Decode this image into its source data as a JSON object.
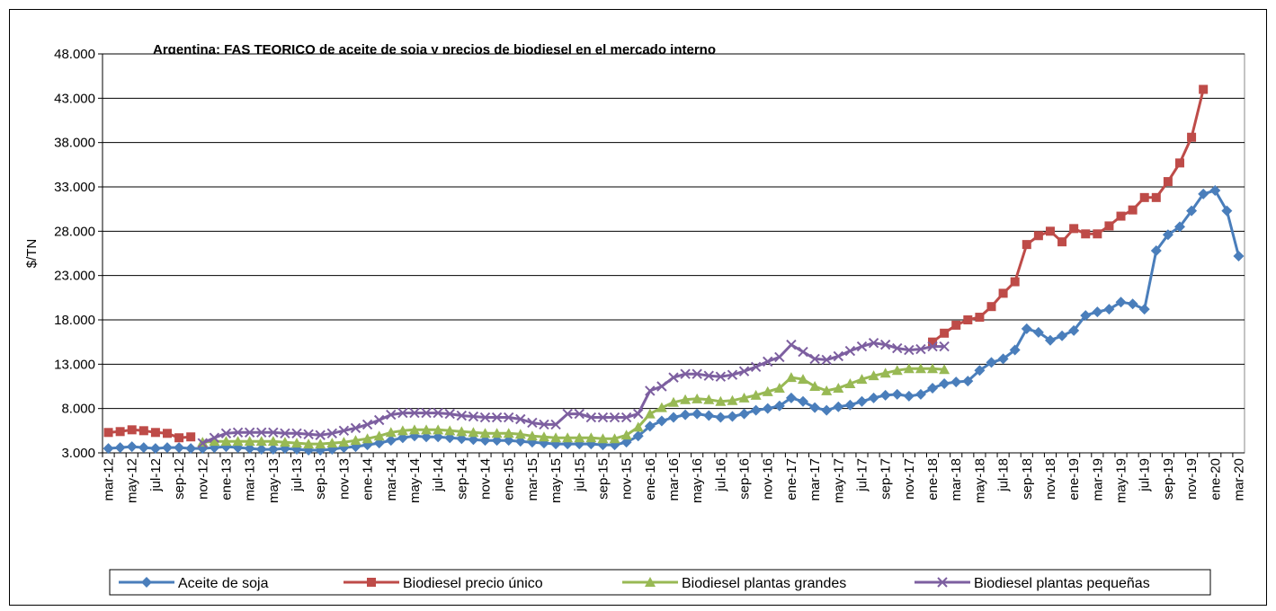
{
  "chart_data": {
    "type": "line",
    "title": "Argentina: FAS  TEORICO  de aceite de soja y precios de biodiesel  en el mercado interno",
    "y_label": "$/TN",
    "categories": [
      "mar-12",
      null,
      "may-12",
      null,
      "jul-12",
      null,
      "sep-12",
      null,
      "nov-12",
      null,
      "ene-13",
      null,
      "mar-13",
      null,
      "may-13",
      null,
      "jul-13",
      null,
      "sep-13",
      null,
      "nov-13",
      null,
      "ene-14",
      null,
      "mar-14",
      null,
      "may-14",
      null,
      "jul-14",
      null,
      "sep-14",
      null,
      "nov-14",
      null,
      "ene-15",
      null,
      "mar-15",
      null,
      "may-15",
      null,
      "jul-15",
      null,
      "sep-15",
      null,
      "nov-15",
      null,
      "ene-16",
      null,
      "mar-16",
      null,
      "may-16",
      null,
      "jul-16",
      null,
      "sep-16",
      null,
      "nov-16",
      null,
      "ene-17",
      null,
      "mar-17",
      null,
      "may-17",
      null,
      "jul-17",
      null,
      "sep-17",
      null,
      "nov-17",
      null,
      "ene-18",
      null,
      "mar-18",
      null,
      "may-18",
      null,
      "jul-18",
      null,
      "sep-18",
      null,
      "nov-18",
      null,
      "ene-19",
      null,
      "mar-19",
      null,
      "may-19",
      null,
      "jul-19",
      null,
      "sep-19",
      null,
      "nov-19",
      null,
      "ene-20",
      null,
      "mar-20"
    ],
    "series": [
      {
        "name": "Aceite de soja",
        "color": "#4a7ebb",
        "marker": "diamond",
        "values": [
          3500,
          3600,
          3700,
          3600,
          3500,
          3600,
          3600,
          3500,
          3500,
          3600,
          3700,
          3600,
          3500,
          3400,
          3400,
          3500,
          3400,
          3300,
          3300,
          3400,
          3600,
          3700,
          3900,
          4100,
          4400,
          4700,
          4900,
          4800,
          4800,
          4700,
          4600,
          4500,
          4400,
          4400,
          4400,
          4300,
          4200,
          4100,
          4000,
          4000,
          4000,
          4000,
          3900,
          3900,
          4200,
          4900,
          6000,
          6600,
          7000,
          7300,
          7400,
          7200,
          7000,
          7100,
          7400,
          7800,
          8000,
          8300,
          9200,
          8800,
          8100,
          7800,
          8200,
          8400,
          8800,
          9200,
          9500,
          9600,
          9400,
          9600,
          10300,
          10800,
          11000,
          11100,
          12300,
          13200,
          13600,
          14600,
          17000,
          16600,
          15700,
          16200,
          16800,
          18500,
          18900,
          19200,
          20000,
          19800,
          19200,
          25800,
          27600,
          28500,
          30300,
          32200,
          32600,
          30300,
          25200
        ]
      },
      {
        "name": "Biodiesel precio único",
        "color": "#be4b48",
        "marker": "square",
        "values": [
          5300,
          5400,
          5600,
          5500,
          5300,
          5200,
          4700,
          4800,
          null,
          null,
          null,
          null,
          null,
          null,
          null,
          null,
          null,
          null,
          null,
          null,
          null,
          null,
          null,
          null,
          null,
          null,
          null,
          null,
          null,
          null,
          null,
          null,
          null,
          null,
          null,
          null,
          null,
          null,
          null,
          null,
          null,
          null,
          null,
          null,
          null,
          null,
          null,
          null,
          null,
          null,
          null,
          null,
          null,
          null,
          null,
          null,
          null,
          null,
          null,
          null,
          null,
          null,
          null,
          null,
          null,
          null,
          null,
          null,
          null,
          null,
          15500,
          16500,
          17400,
          18000,
          18300,
          19500,
          21000,
          22300,
          26500,
          27500,
          28000,
          26800,
          28300,
          27700,
          27700,
          28600,
          29700,
          30400,
          31800,
          31800,
          33600,
          35700,
          38600,
          44000,
          null,
          null,
          null
        ]
      },
      {
        "name": "Biodiesel plantas grandes",
        "color": "#98b954",
        "marker": "triangle",
        "values": [
          null,
          null,
          null,
          null,
          null,
          null,
          null,
          null,
          4200,
          4300,
          4300,
          4300,
          4300,
          4300,
          4300,
          4200,
          4100,
          4000,
          4000,
          4100,
          4200,
          4400,
          4600,
          4900,
          5300,
          5500,
          5600,
          5600,
          5600,
          5500,
          5400,
          5300,
          5200,
          5200,
          5200,
          5100,
          4900,
          4800,
          4700,
          4700,
          4700,
          4700,
          4600,
          4600,
          5000,
          5900,
          7400,
          8100,
          8700,
          9000,
          9100,
          9000,
          8800,
          8900,
          9200,
          9500,
          9900,
          10300,
          11500,
          11300,
          10500,
          10000,
          10300,
          10800,
          11300,
          11700,
          12000,
          12300,
          12500,
          12500,
          12500,
          12400,
          null,
          null,
          null,
          null,
          null,
          null,
          null,
          null,
          null,
          null,
          null,
          null,
          null,
          null,
          null,
          null,
          null,
          null,
          null,
          null,
          null,
          null,
          null,
          null,
          null
        ]
      },
      {
        "name": "Biodiesel plantas pequeñas",
        "color": "#7d5fa0",
        "marker": "x",
        "values": [
          null,
          null,
          null,
          null,
          null,
          null,
          null,
          null,
          4100,
          4700,
          5200,
          5300,
          5300,
          5300,
          5300,
          5200,
          5200,
          5100,
          5000,
          5200,
          5500,
          5800,
          6200,
          6700,
          7300,
          7500,
          7500,
          7500,
          7500,
          7400,
          7200,
          7100,
          7000,
          7000,
          7000,
          6800,
          6400,
          6200,
          6200,
          7400,
          7400,
          7000,
          7000,
          7000,
          7000,
          7400,
          10000,
          10500,
          11500,
          11900,
          11900,
          11700,
          11600,
          11800,
          12200,
          12700,
          13300,
          13800,
          15200,
          14400,
          13600,
          13500,
          13900,
          14500,
          15000,
          15400,
          15200,
          14800,
          14600,
          14700,
          15000,
          15000,
          null,
          null,
          null,
          null,
          null,
          null,
          null,
          null,
          null,
          null,
          null,
          null,
          null,
          null,
          null,
          null,
          null,
          null,
          null,
          null,
          null,
          null,
          null,
          null,
          null
        ]
      }
    ],
    "ylim": [
      3000,
      48000
    ],
    "yticks": [
      {
        "value": 3000,
        "label": "3.000"
      },
      {
        "value": 8000,
        "label": "8.000"
      },
      {
        "value": 13000,
        "label": "13.000"
      },
      {
        "value": 18000,
        "label": "18.000"
      },
      {
        "value": 23000,
        "label": "23.000"
      },
      {
        "value": 28000,
        "label": "28.000"
      },
      {
        "value": 33000,
        "label": "33.000"
      },
      {
        "value": 38000,
        "label": "38.000"
      },
      {
        "value": 43000,
        "label": "43.000"
      },
      {
        "value": 48000,
        "label": "48.000"
      }
    ],
    "grid": true,
    "legend": "bottom"
  }
}
